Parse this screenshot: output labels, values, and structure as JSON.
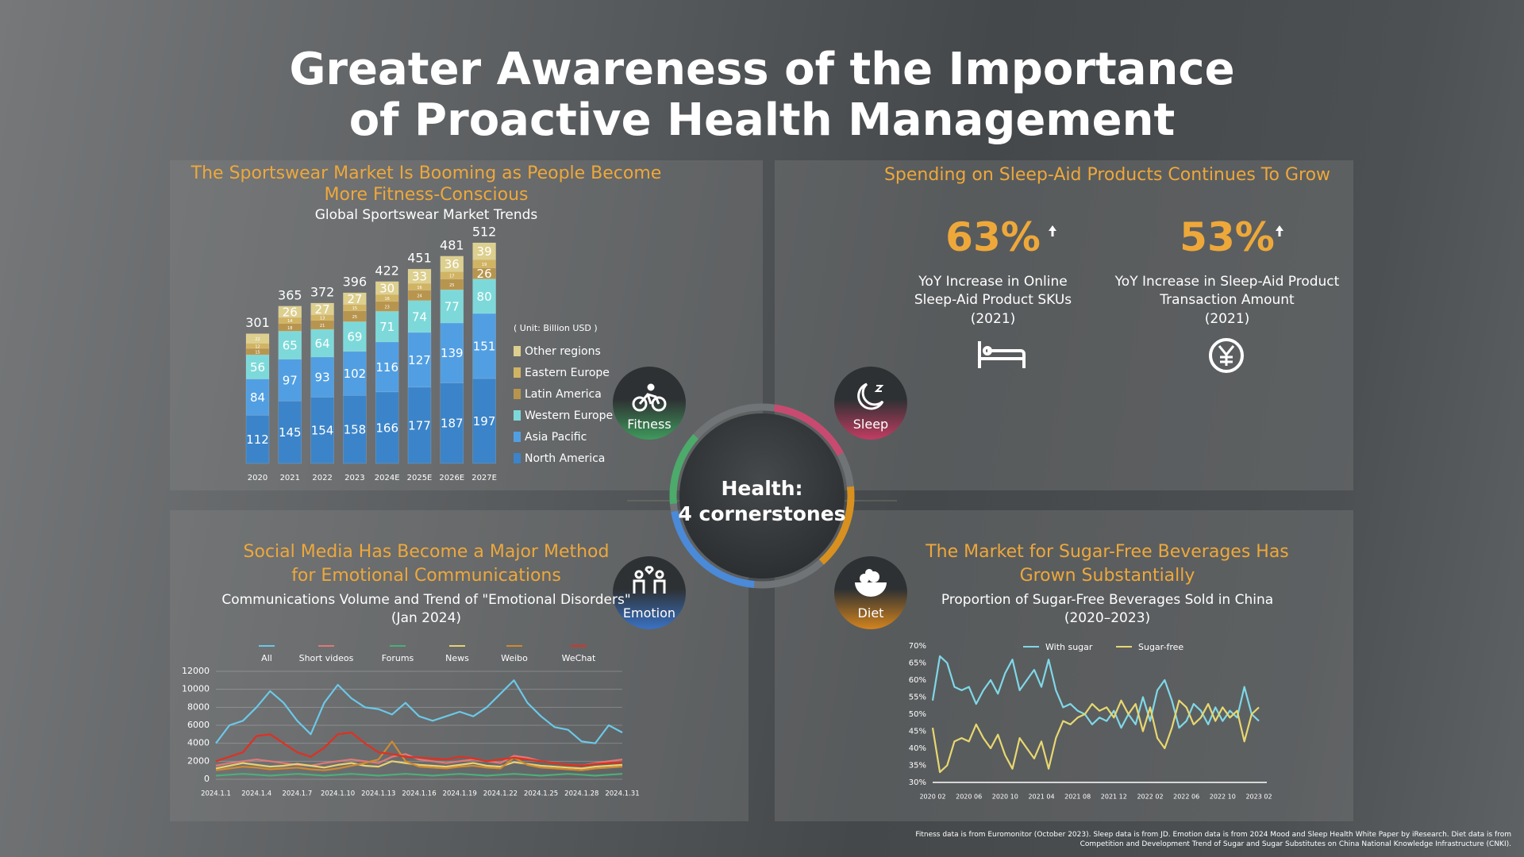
{
  "title": "Greater Awareness of the Importance of Proactive Health Management",
  "center": {
    "title": "Health:",
    "subtitle": "4 cornerstones",
    "pillars": [
      "Fitness",
      "Sleep",
      "Emotion",
      "Diet"
    ]
  },
  "sleep": {
    "title": "Spending on Sleep-Aid Products Continues To Grow",
    "stats": [
      {
        "value": "63%",
        "label": "YoY Increase in Online Sleep-Aid Product SKUs",
        "year": "(2021)"
      },
      {
        "value": "53%",
        "label": "YoY Increase in Sleep-Aid Product Transaction Amount",
        "year": "(2021)"
      }
    ]
  },
  "chart_data": [
    {
      "type": "stacked_bar",
      "title": "The Sportswear Market Is Booming as People Become More Fitness-Conscious",
      "subtitle": "Global Sportswear Market Trends",
      "unit": "( Unit: Billion USD )",
      "categories": [
        "2020",
        "2021",
        "2022",
        "2023",
        "2024E",
        "2025E",
        "2026E",
        "2027E"
      ],
      "series": [
        {
          "name": "North America",
          "color": "#3b84c9",
          "values": [
            112,
            145,
            154,
            158,
            166,
            177,
            187,
            197
          ]
        },
        {
          "name": "Asia Pacific",
          "color": "#519fe2",
          "values": [
            84,
            97,
            93,
            102,
            116,
            127,
            139,
            151
          ]
        },
        {
          "name": "Western Europe",
          "color": "#7dd9d9",
          "values": [
            56,
            65,
            64,
            69,
            71,
            74,
            77,
            80
          ]
        },
        {
          "name": "Latin America",
          "color": "#b8954e",
          "values": [
            15,
            18,
            21,
            25,
            23,
            24,
            25,
            26
          ]
        },
        {
          "name": "Eastern Europe",
          "color": "#d1b463",
          "values": [
            12,
            14,
            13,
            15,
            16,
            16,
            17,
            19
          ]
        },
        {
          "name": "Other regions",
          "color": "#ddcf8e",
          "values": [
            22,
            26,
            27,
            27,
            30,
            33,
            36,
            39
          ]
        }
      ],
      "totals": [
        301,
        365,
        372,
        396,
        422,
        451,
        481,
        512
      ]
    },
    {
      "type": "line",
      "title": "Social Media Has Become a Major Method for Emotional Communications",
      "subtitle": "Communications Volume and Trend of \"Emotional Disorders\" (Jan 2024)",
      "categories": [
        "2024.1.1",
        null,
        null,
        "2024.1.4",
        null,
        null,
        "2024.1.7",
        null,
        null,
        "2024.1.10",
        null,
        null,
        "2024.1.13",
        null,
        null,
        "2024.1.16",
        null,
        null,
        "2024.1.19",
        null,
        null,
        "2024.1.22",
        null,
        null,
        "2024.1.25",
        null,
        null,
        "2024.1.28",
        null,
        null,
        "2024.1.31"
      ],
      "ylim": [
        0,
        12000
      ],
      "yticks": [
        0,
        2000,
        4000,
        6000,
        8000,
        10000,
        12000
      ],
      "grid": true,
      "series": [
        {
          "name": "All",
          "color": "#6cc8e8",
          "values": [
            4000,
            6000,
            6500,
            8000,
            9800,
            8500,
            6500,
            5000,
            8500,
            10500,
            9000,
            8000,
            7800,
            7200,
            8500,
            7000,
            6500,
            7000,
            7500,
            7000,
            8000,
            9500,
            11000,
            8500,
            7000,
            5800,
            5500,
            4200,
            4000,
            6000,
            5200
          ]
        },
        {
          "name": "Short videos",
          "color": "#e07878",
          "values": [
            1500,
            1800,
            2000,
            2200,
            2000,
            1800,
            1600,
            1500,
            1800,
            2000,
            2200,
            2000,
            1800,
            2500,
            2800,
            2200,
            2000,
            1800,
            2000,
            2200,
            2000,
            1800,
            2600,
            2400,
            2000,
            1800,
            1600,
            1500,
            1800,
            2000,
            2200
          ]
        },
        {
          "name": "Forums",
          "color": "#4caf7a",
          "values": [
            400,
            500,
            600,
            500,
            400,
            500,
            600,
            500,
            400,
            500,
            600,
            500,
            400,
            500,
            600,
            500,
            400,
            500,
            600,
            500,
            400,
            500,
            600,
            500,
            400,
            500,
            600,
            500,
            400,
            500,
            600
          ]
        },
        {
          "name": "News",
          "color": "#e8d070",
          "values": [
            1200,
            1500,
            1800,
            1600,
            1400,
            1500,
            1700,
            1500,
            1300,
            1600,
            1800,
            1500,
            1400,
            2000,
            1800,
            1600,
            1500,
            1400,
            1600,
            1800,
            1500,
            1400,
            1900,
            1700,
            1500,
            1400,
            1300,
            1200,
            1400,
            1500,
            1600
          ]
        },
        {
          "name": "Weibo",
          "color": "#d08a30",
          "values": [
            1000,
            1200,
            1400,
            1300,
            1100,
            1200,
            1300,
            1100,
            1000,
            1200,
            1500,
            1800,
            2200,
            4200,
            2000,
            1400,
            1300,
            1200,
            1400,
            1500,
            1300,
            1200,
            2400,
            1600,
            1300,
            1200,
            1100,
            1000,
            1200,
            1300,
            1400
          ]
        },
        {
          "name": "WeChat",
          "color": "#e03020",
          "values": [
            2000,
            2500,
            3000,
            4800,
            5000,
            4000,
            3000,
            2500,
            3500,
            5000,
            5200,
            4000,
            3000,
            2800,
            2500,
            2400,
            2300,
            2200,
            2500,
            2300,
            2000,
            2200,
            2400,
            2200,
            2000,
            1800,
            1600,
            1500,
            1700,
            1800,
            1900
          ]
        }
      ]
    },
    {
      "type": "line",
      "title": "The Market for Sugar-Free Beverages Has Grown Substantially",
      "subtitle": "Proportion of Sugar-Free Beverages Sold in China (2020–2023)",
      "categories": [
        "2020 02",
        null,
        null,
        null,
        null,
        "2020 06",
        null,
        null,
        null,
        null,
        "2020 10",
        null,
        null,
        null,
        null,
        "2021 04",
        null,
        null,
        null,
        null,
        "2021 08",
        null,
        null,
        null,
        null,
        "2021 12",
        null,
        null,
        null,
        null,
        "2022 02",
        null,
        null,
        null,
        null,
        "2022 06",
        null,
        null,
        null,
        null,
        "2022 10",
        null,
        null,
        null,
        null,
        "2023 02"
      ],
      "ylim": [
        30,
        70
      ],
      "yticks": [
        {
          "value": 30,
          "label": "30%"
        },
        {
          "value": 35,
          "label": "35%"
        },
        {
          "value": 40,
          "label": "40%"
        },
        {
          "value": 45,
          "label": "45%"
        },
        {
          "value": 50,
          "label": "50%"
        },
        {
          "value": 55,
          "label": "55%"
        },
        {
          "value": 60,
          "label": "60%"
        },
        {
          "value": 65,
          "label": "65%"
        },
        {
          "value": 70,
          "label": "70%"
        }
      ],
      "grid": false,
      "series": [
        {
          "name": "With sugar",
          "color": "#7fd8e8",
          "values": [
            54,
            67,
            65,
            58,
            57,
            58,
            53,
            57,
            60,
            56,
            62,
            66,
            57,
            60,
            63,
            58,
            66,
            57,
            52,
            53,
            51,
            50,
            47,
            49,
            48,
            51,
            46,
            50,
            47,
            55,
            48,
            57,
            60,
            54,
            46,
            48,
            53,
            51,
            47,
            52,
            48,
            51,
            49,
            58,
            50,
            48
          ]
        },
        {
          "name": "Sugar-free",
          "color": "#e8d870",
          "values": [
            46,
            33,
            35,
            42,
            43,
            42,
            47,
            43,
            40,
            44,
            38,
            34,
            43,
            40,
            37,
            42,
            34,
            43,
            48,
            47,
            49,
            50,
            53,
            51,
            52,
            49,
            54,
            50,
            53,
            45,
            52,
            43,
            40,
            46,
            54,
            52,
            47,
            49,
            53,
            48,
            52,
            49,
            51,
            42,
            50,
            52
          ]
        }
      ]
    }
  ],
  "footnote": "Fitness data is from Euromonitor (October 2023). Sleep data is from JD. Emotion data is from 2024 Mood and Sleep Health White Paper by iResearch. Diet data is from Competition and Development Trend of Sugar and Sugar Substitutes on China National Knowledge Infrastructure (CNKI)."
}
